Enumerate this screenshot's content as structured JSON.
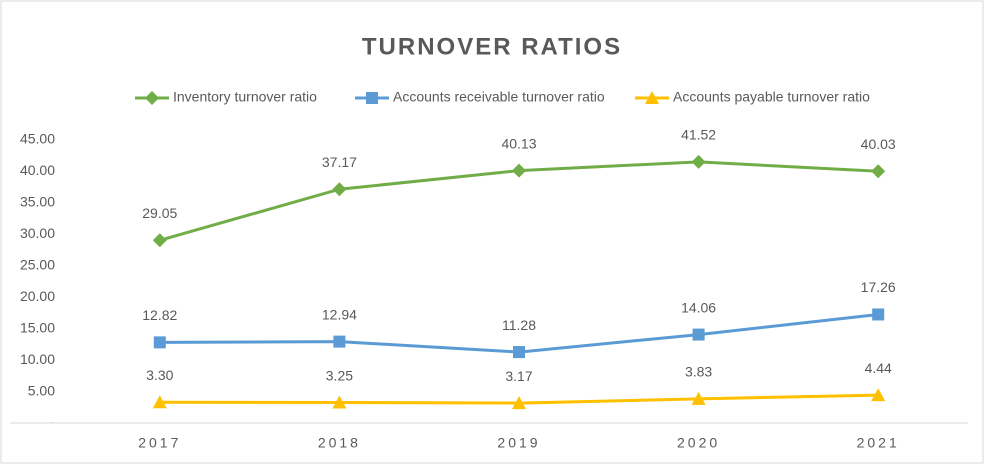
{
  "chart_data": {
    "type": "line",
    "title": "TURNOVER RATIOS",
    "categories": [
      "2017",
      "2018",
      "2019",
      "2020",
      "2021"
    ],
    "series": [
      {
        "name": "Inventory turnover ratio",
        "color": "#70ad47",
        "marker": "diamond",
        "values": [
          29.05,
          37.17,
          40.13,
          41.52,
          40.03
        ],
        "value_labels": [
          "29.05",
          "37.17",
          "40.13",
          "41.52",
          "40.03"
        ]
      },
      {
        "name": "Accounts receivable turnover ratio",
        "color": "#5b9bd5",
        "marker": "square",
        "values": [
          12.82,
          12.94,
          11.28,
          14.06,
          17.26
        ],
        "value_labels": [
          "12.82",
          "12.94",
          "11.28",
          "14.06",
          "17.26"
        ]
      },
      {
        "name": "Accounts payable turnover ratio",
        "color": "#ffc000",
        "marker": "triangle",
        "values": [
          3.3,
          3.25,
          3.17,
          3.83,
          4.44
        ],
        "value_labels": [
          "3.30",
          "3.25",
          "3.17",
          "3.83",
          "4.44"
        ]
      }
    ],
    "ylim": [
      0,
      45
    ],
    "yticks": [
      {
        "value": 0,
        "label": "-"
      },
      {
        "value": 5,
        "label": "5.00"
      },
      {
        "value": 10,
        "label": "10.00"
      },
      {
        "value": 15,
        "label": "15.00"
      },
      {
        "value": 20,
        "label": "20.00"
      },
      {
        "value": 25,
        "label": "25.00"
      },
      {
        "value": 30,
        "label": "30.00"
      },
      {
        "value": 35,
        "label": "35.00"
      },
      {
        "value": 40,
        "label": "40.00"
      },
      {
        "value": 45,
        "label": "45.00"
      }
    ],
    "grid": false,
    "legend": "top"
  }
}
